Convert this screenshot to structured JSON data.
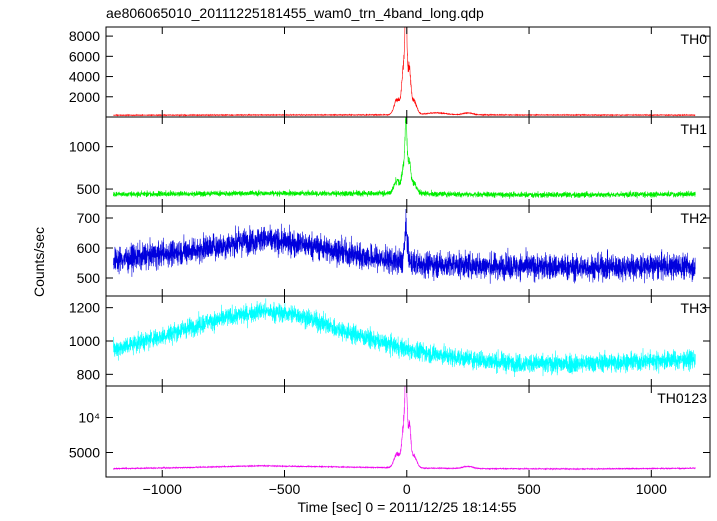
{
  "chart_data": {
    "type": "line",
    "title": "ae806065010_20111225181455_wam0_trn_4band_long.qdp",
    "xlabel": "Time [sec] 0 = 2011/12/25 18:14:55",
    "ylabel": "Counts/sec",
    "xlim": [
      -1230,
      1240
    ],
    "xticks": [
      -1000,
      -500,
      0,
      500,
      1000
    ],
    "xtick_labels": [
      "−1000",
      "−500",
      "0",
      "500",
      "1000"
    ],
    "data_range": [
      -1200,
      1180
    ],
    "panels": [
      {
        "name": "TH0",
        "color": "#ff0000",
        "ylim": [
          0,
          8900
        ],
        "yticks": [
          2000,
          4000,
          6000,
          8000
        ],
        "ytick_labels": [
          "2000",
          "4000",
          "6000",
          "8000"
        ],
        "baseline": [
          [
            -1200,
            180
          ],
          [
            -600,
            200
          ],
          [
            -100,
            210
          ],
          [
            0,
            210
          ],
          [
            200,
            210
          ],
          [
            600,
            200
          ],
          [
            1180,
            190
          ]
        ],
        "noise": 35,
        "features": [
          {
            "t": -40,
            "w": 12,
            "h": 1500
          },
          {
            "t": -12,
            "w": 8,
            "h": 4600
          },
          {
            "t": -3,
            "w": 4,
            "h": 8500
          },
          {
            "t": 10,
            "w": 6,
            "h": 4200
          },
          {
            "t": 28,
            "w": 12,
            "h": 1400
          },
          {
            "t": 120,
            "w": 40,
            "h": 200
          },
          {
            "t": 250,
            "w": 20,
            "h": 200
          }
        ]
      },
      {
        "name": "TH1",
        "color": "#00ee00",
        "ylim": [
          300,
          1350
        ],
        "yticks": [
          500,
          1000
        ],
        "ytick_labels": [
          "500",
          "1000"
        ],
        "baseline": [
          [
            -1200,
            440
          ],
          [
            -600,
            450
          ],
          [
            -100,
            450
          ],
          [
            0,
            450
          ],
          [
            200,
            440
          ],
          [
            600,
            430
          ],
          [
            1180,
            440
          ]
        ],
        "noise": 32,
        "features": [
          {
            "t": -40,
            "w": 12,
            "h": 150
          },
          {
            "t": -12,
            "w": 8,
            "h": 300
          },
          {
            "t": -3,
            "w": 4,
            "h": 720
          },
          {
            "t": 10,
            "w": 6,
            "h": 350
          },
          {
            "t": 28,
            "w": 12,
            "h": 120
          }
        ]
      },
      {
        "name": "TH2",
        "color": "#0000dd",
        "ylim": [
          440,
          740
        ],
        "yticks": [
          500,
          600,
          700
        ],
        "ytick_labels": [
          "500",
          "600",
          "700"
        ],
        "baseline": [
          [
            -1200,
            560
          ],
          [
            -900,
            590
          ],
          [
            -600,
            630
          ],
          [
            -400,
            610
          ],
          [
            -200,
            575
          ],
          [
            0,
            550
          ],
          [
            300,
            540
          ],
          [
            700,
            535
          ],
          [
            1180,
            540
          ]
        ],
        "noise": 42,
        "features": [
          {
            "t": -3,
            "w": 6,
            "h": 110
          }
        ]
      },
      {
        "name": "TH3",
        "color": "#00ffff",
        "ylim": [
          730,
          1270
        ],
        "yticks": [
          800,
          1000,
          1200
        ],
        "ytick_labels": [
          "800",
          "1000",
          "1200"
        ],
        "baseline": [
          [
            -1200,
            950
          ],
          [
            -1000,
            1030
          ],
          [
            -800,
            1120
          ],
          [
            -600,
            1180
          ],
          [
            -450,
            1160
          ],
          [
            -300,
            1080
          ],
          [
            -100,
            990
          ],
          [
            0,
            950
          ],
          [
            200,
            900
          ],
          [
            400,
            870
          ],
          [
            600,
            860
          ],
          [
            800,
            870
          ],
          [
            1000,
            880
          ],
          [
            1180,
            890
          ]
        ],
        "noise": 55,
        "features": []
      },
      {
        "name": "TH0123",
        "color": "#ee00ee",
        "ylim": [
          1500,
          14500
        ],
        "yticks": [
          5000,
          10000
        ],
        "ytick_labels": [
          "5000",
          "10⁴"
        ],
        "baseline": [
          [
            -1200,
            2700
          ],
          [
            -900,
            2850
          ],
          [
            -600,
            3100
          ],
          [
            -300,
            2950
          ],
          [
            0,
            2800
          ],
          [
            300,
            2700
          ],
          [
            700,
            2650
          ],
          [
            1180,
            2750
          ]
        ],
        "noise": 70,
        "features": [
          {
            "t": -40,
            "w": 12,
            "h": 2000
          },
          {
            "t": -12,
            "w": 8,
            "h": 6000
          },
          {
            "t": -3,
            "w": 4,
            "h": 11500
          },
          {
            "t": 10,
            "w": 6,
            "h": 5500
          },
          {
            "t": 28,
            "w": 12,
            "h": 1800
          },
          {
            "t": 250,
            "w": 20,
            "h": 300
          }
        ]
      }
    ]
  }
}
